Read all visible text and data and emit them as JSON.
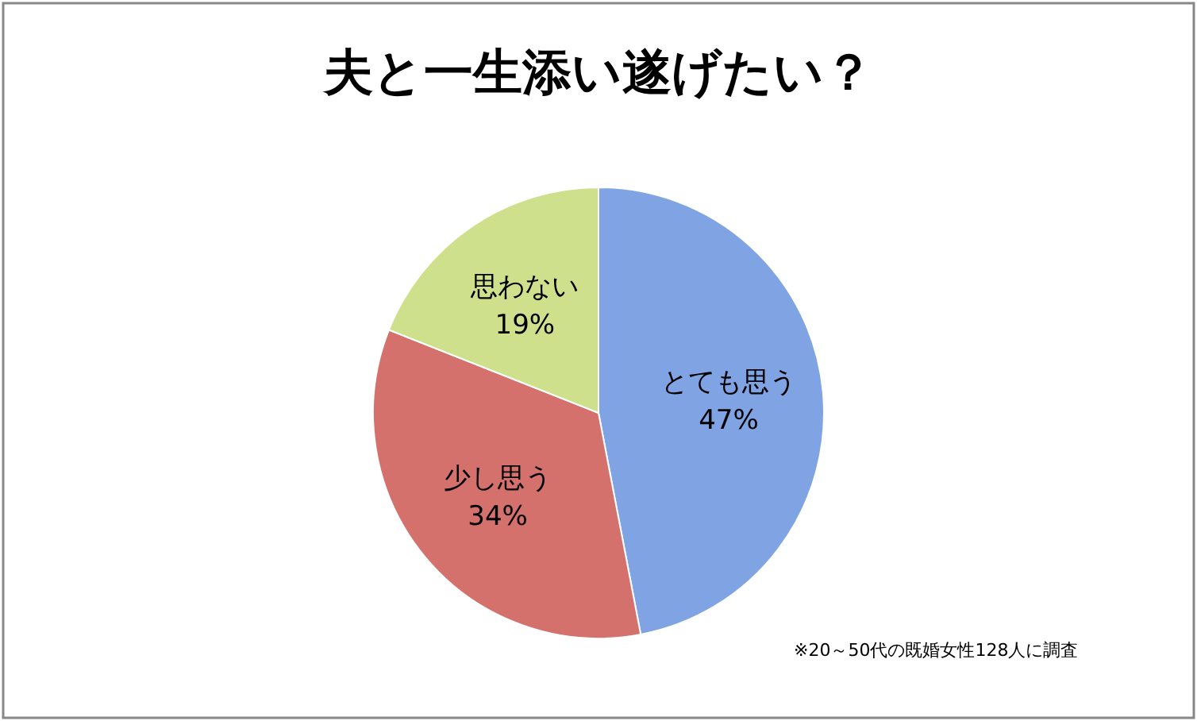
{
  "chart_data": {
    "type": "pie",
    "title": "夫と一生添い遂げたい？",
    "categories": [
      "とても思う",
      "少し思う",
      "思わない"
    ],
    "values": [
      47,
      34,
      19
    ],
    "value_labels": [
      "47%",
      "34%",
      "19%"
    ],
    "colors": [
      "#7fa3e3",
      "#d4716d",
      "#cfe08c"
    ],
    "annotations": [
      "※20～50代の既婚女性128人に調査"
    ]
  }
}
